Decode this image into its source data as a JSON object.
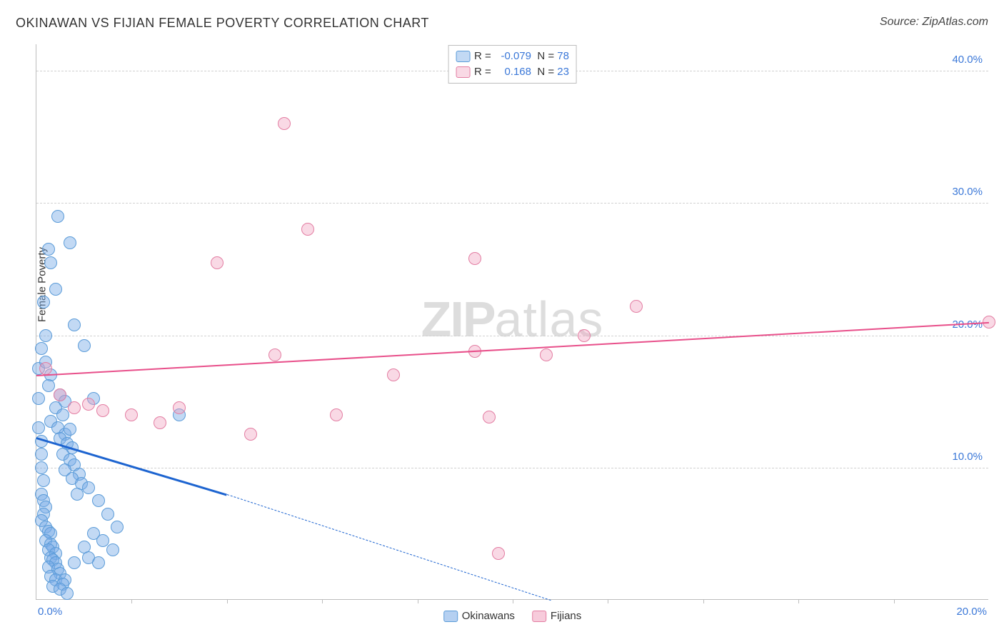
{
  "title": "OKINAWAN VS FIJIAN FEMALE POVERTY CORRELATION CHART",
  "source": "Source: ZipAtlas.com",
  "ylabel": "Female Poverty",
  "watermark": {
    "zip": "ZIP",
    "rest": "atlas"
  },
  "chart": {
    "type": "scatter",
    "background_color": "#ffffff",
    "grid_color": "#d0d0d0",
    "axis_color": "#bdbdbd",
    "label_color": "#3b78d8",
    "label_fontsize": 15,
    "xlim": [
      0,
      20
    ],
    "ylim": [
      0,
      42
    ],
    "yticks": [
      {
        "v": 10,
        "label": "10.0%"
      },
      {
        "v": 20,
        "label": "20.0%"
      },
      {
        "v": 30,
        "label": "30.0%"
      },
      {
        "v": 40,
        "label": "40.0%"
      }
    ],
    "xticks_minor": [
      2,
      4,
      6,
      8,
      10,
      12,
      14,
      16,
      18
    ],
    "xticks_labeled": [
      {
        "v": 0,
        "label": "0.0%",
        "anchor": "start"
      },
      {
        "v": 20,
        "label": "20.0%",
        "anchor": "end"
      }
    ],
    "series": [
      {
        "name": "Okinawans",
        "marker_fill": "rgba(120,170,230,0.45)",
        "marker_stroke": "#5a9bd8",
        "marker_radius": 9,
        "R": "-0.079",
        "N": "78",
        "trend": {
          "color": "#1d64d0",
          "width": 3,
          "solid": {
            "x1": 0,
            "y1": 12.3,
            "x2": 4.0,
            "y2": 8.0
          },
          "dashed": {
            "x1": 4.0,
            "y1": 8.0,
            "x2": 10.8,
            "y2": 0.0
          }
        },
        "points": [
          [
            0.05,
            17.5
          ],
          [
            0.05,
            15.2
          ],
          [
            0.05,
            13.0
          ],
          [
            0.1,
            12.0
          ],
          [
            0.1,
            11.0
          ],
          [
            0.1,
            10.0
          ],
          [
            0.15,
            9.0
          ],
          [
            0.1,
            8.0
          ],
          [
            0.15,
            7.5
          ],
          [
            0.2,
            7.0
          ],
          [
            0.15,
            6.5
          ],
          [
            0.1,
            6.0
          ],
          [
            0.2,
            5.5
          ],
          [
            0.25,
            5.2
          ],
          [
            0.3,
            5.0
          ],
          [
            0.2,
            4.5
          ],
          [
            0.3,
            4.2
          ],
          [
            0.35,
            4.0
          ],
          [
            0.25,
            3.8
          ],
          [
            0.4,
            3.5
          ],
          [
            0.3,
            3.2
          ],
          [
            0.35,
            3.0
          ],
          [
            0.4,
            2.8
          ],
          [
            0.25,
            2.5
          ],
          [
            0.45,
            2.3
          ],
          [
            0.5,
            2.0
          ],
          [
            0.3,
            1.8
          ],
          [
            0.4,
            1.5
          ],
          [
            0.6,
            1.5
          ],
          [
            0.55,
            1.2
          ],
          [
            0.35,
            1.0
          ],
          [
            0.5,
            0.8
          ],
          [
            0.65,
            0.5
          ],
          [
            0.45,
            29.0
          ],
          [
            0.7,
            27.0
          ],
          [
            0.25,
            26.5
          ],
          [
            0.3,
            25.5
          ],
          [
            0.4,
            23.5
          ],
          [
            0.8,
            20.8
          ],
          [
            0.15,
            22.5
          ],
          [
            0.2,
            20.0
          ],
          [
            0.1,
            19.0
          ],
          [
            0.2,
            18.0
          ],
          [
            0.3,
            17.0
          ],
          [
            0.25,
            16.2
          ],
          [
            0.5,
            15.5
          ],
          [
            0.6,
            15.0
          ],
          [
            0.4,
            14.5
          ],
          [
            0.55,
            14.0
          ],
          [
            0.3,
            13.5
          ],
          [
            0.45,
            13.0
          ],
          [
            0.6,
            12.5
          ],
          [
            0.7,
            12.9
          ],
          [
            0.5,
            12.2
          ],
          [
            0.65,
            11.8
          ],
          [
            0.75,
            11.5
          ],
          [
            0.55,
            11.0
          ],
          [
            0.7,
            10.6
          ],
          [
            0.8,
            10.2
          ],
          [
            0.6,
            9.8
          ],
          [
            0.9,
            9.5
          ],
          [
            0.75,
            9.2
          ],
          [
            0.95,
            8.8
          ],
          [
            1.1,
            8.5
          ],
          [
            0.85,
            8.0
          ],
          [
            1.3,
            7.5
          ],
          [
            1.5,
            6.5
          ],
          [
            1.7,
            5.5
          ],
          [
            1.2,
            5.0
          ],
          [
            1.4,
            4.5
          ],
          [
            1.6,
            3.8
          ],
          [
            1.0,
            4.0
          ],
          [
            1.1,
            3.2
          ],
          [
            1.3,
            2.8
          ],
          [
            0.8,
            2.8
          ],
          [
            1.0,
            19.2
          ],
          [
            1.2,
            15.2
          ],
          [
            3.0,
            14.0
          ]
        ]
      },
      {
        "name": "Fijians",
        "marker_fill": "rgba(240,160,190,0.40)",
        "marker_stroke": "#e37da2",
        "marker_radius": 9,
        "R": "0.168",
        "N": "23",
        "trend": {
          "color": "#e84f8a",
          "width": 2,
          "solid": {
            "x1": 0,
            "y1": 17.0,
            "x2": 20,
            "y2": 21.0
          }
        },
        "points": [
          [
            5.2,
            36.0
          ],
          [
            5.7,
            28.0
          ],
          [
            3.8,
            25.5
          ],
          [
            9.2,
            25.8
          ],
          [
            12.6,
            22.2
          ],
          [
            20.0,
            21.0
          ],
          [
            11.5,
            20.0
          ],
          [
            10.7,
            18.5
          ],
          [
            9.2,
            18.8
          ],
          [
            7.5,
            17.0
          ],
          [
            5.0,
            18.5
          ],
          [
            6.3,
            14.0
          ],
          [
            9.5,
            13.8
          ],
          [
            4.5,
            12.5
          ],
          [
            3.0,
            14.5
          ],
          [
            2.0,
            14.0
          ],
          [
            2.6,
            13.4
          ],
          [
            1.4,
            14.3
          ],
          [
            1.1,
            14.8
          ],
          [
            0.8,
            14.5
          ],
          [
            0.2,
            17.5
          ],
          [
            9.7,
            3.5
          ],
          [
            0.5,
            15.5
          ]
        ]
      }
    ]
  },
  "legend_bottom": [
    {
      "label": "Okinawans",
      "fill": "rgba(120,170,230,0.55)",
      "stroke": "#5a9bd8"
    },
    {
      "label": "Fijians",
      "fill": "rgba(240,160,190,0.55)",
      "stroke": "#e37da2"
    }
  ]
}
